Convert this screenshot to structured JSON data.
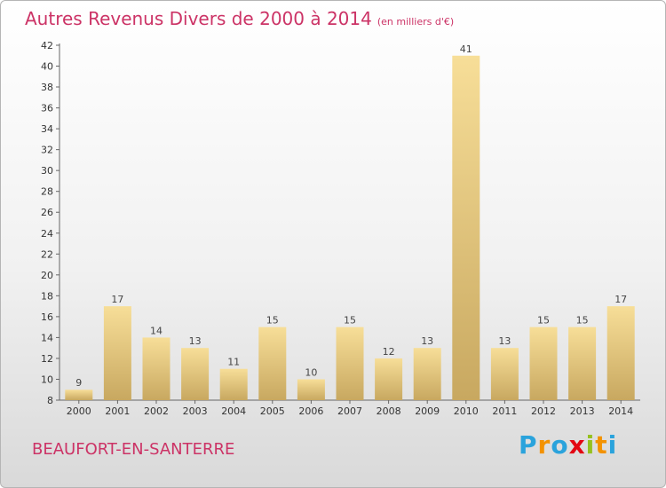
{
  "chart_data": {
    "type": "bar",
    "title": "Autres Revenus Divers de 2000 à 2014",
    "subtitle": "(en milliers d'€)",
    "categories": [
      "2000",
      "2001",
      "2002",
      "2003",
      "2004",
      "2005",
      "2006",
      "2007",
      "2008",
      "2009",
      "2010",
      "2011",
      "2012",
      "2013",
      "2014"
    ],
    "values": [
      9,
      17,
      14,
      13,
      11,
      15,
      10,
      15,
      12,
      13,
      41,
      13,
      15,
      15,
      17
    ],
    "ylim": [
      8,
      42
    ],
    "yticks": [
      8,
      10,
      12,
      14,
      16,
      18,
      20,
      22,
      24,
      26,
      28,
      30,
      32,
      34,
      36,
      38,
      40,
      42
    ],
    "grid": false,
    "legend": "none",
    "xlabel": "",
    "ylabel": ""
  },
  "footer": {
    "city": "BEAUFORT-EN-SANTERRE",
    "logo": [
      "P",
      "r",
      "o",
      "x",
      "i",
      "t",
      "i"
    ]
  },
  "colors": {
    "title": "#cc3366",
    "bar_light": "#f7de98",
    "bar_dark": "#c8a860",
    "logo": [
      "#2aa3dc",
      "#f39200",
      "#2aa3dc",
      "#e30613",
      "#95c11f",
      "#f39200",
      "#2aa3dc"
    ]
  }
}
